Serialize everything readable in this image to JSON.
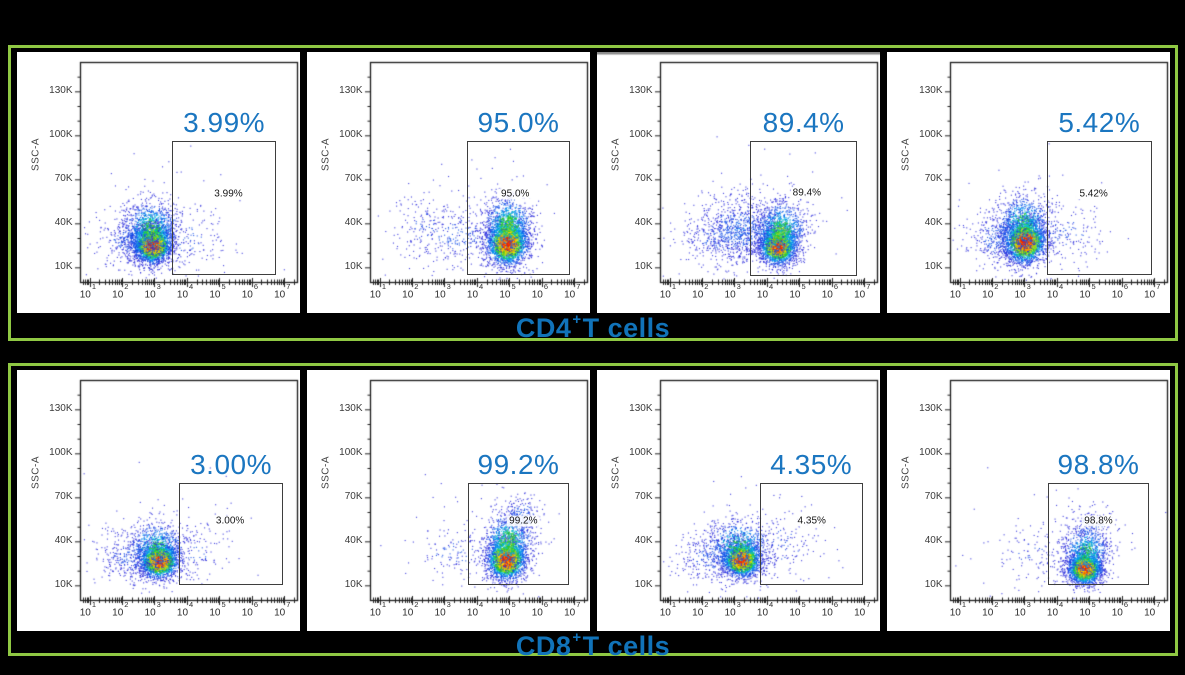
{
  "colors": {
    "page_background": "#000000",
    "frame_green": "#8fc843",
    "panel_background": "#ffffff",
    "percent_blue": "#1b76c0",
    "title_blue": "#1173b9",
    "gate_border": "#3e3e3e",
    "axis_color": "#1a1a1a",
    "tick_label_color": "#3a3a3a",
    "density_palette": [
      "#2b2bdb",
      "#1550e8",
      "#008cf0",
      "#00bfc8",
      "#2ec92e",
      "#a5dc1e",
      "#ffd400",
      "#ff8800",
      "#ed2200"
    ]
  },
  "axes": {
    "y_label": "SSC-A",
    "y_max_k": 150,
    "y_ticks": [
      {
        "v": 10,
        "label": "10K"
      },
      {
        "v": 40,
        "label": "40K"
      },
      {
        "v": 70,
        "label": "70K"
      },
      {
        "v": 100,
        "label": "100K"
      },
      {
        "v": 130,
        "label": "130K"
      }
    ],
    "y_minor_step_k": 10,
    "x_base": "10",
    "x_decades": [
      1,
      2,
      3,
      4,
      5,
      6,
      7
    ],
    "x_log_min": 0.7,
    "x_log_max": 7.4,
    "x_scale": "log10"
  },
  "rows": [
    {
      "label_parts": [
        "CD4",
        "+",
        "T cells"
      ],
      "panels": [
        0,
        1,
        2,
        3
      ]
    },
    {
      "label_parts": [
        "CD8",
        "+",
        "T cells"
      ],
      "panels": [
        4,
        5,
        6,
        7
      ]
    }
  ],
  "chart_data": {
    "type": "scatter",
    "description": "Flow cytometry pseudocolor density dot plots, SSC-A vs log10 fluorescence, with rectangular gates and gated percentages",
    "x_scale": "log10",
    "ylabel": "SSC-A",
    "panels": [
      {
        "group": "CD4+T cells",
        "percent": "3.99%",
        "percent_value": 3.99,
        "gate": {
          "x_log": [
            3.55,
            6.78
          ],
          "y_k": [
            5,
            96
          ]
        },
        "label_pos": {
          "x_log": 5.3,
          "y_k": 60
        },
        "clusters": [
          [
            2.92,
            26,
            0.3,
            6.5,
            2600,
            1.0
          ],
          [
            2.88,
            36,
            0.44,
            10,
            1000,
            0.48
          ],
          [
            2.35,
            28,
            0.6,
            9,
            420,
            0.17
          ],
          [
            3.95,
            30,
            0.75,
            11,
            160,
            0.14
          ],
          [
            3.4,
            42,
            1.2,
            24,
            70,
            0.1
          ]
        ]
      },
      {
        "group": "CD4+T cells",
        "percent": "95.0%",
        "percent_value": 95.0,
        "gate": {
          "x_log": [
            3.72,
            6.88
          ],
          "y_k": [
            5,
            96
          ]
        },
        "label_pos": {
          "x_log": 5.2,
          "y_k": 60
        },
        "clusters": [
          [
            4.93,
            27,
            0.32,
            7.5,
            2400,
            1.0
          ],
          [
            4.95,
            39,
            0.38,
            10,
            950,
            0.5
          ],
          [
            3.4,
            32,
            0.75,
            11,
            280,
            0.15
          ],
          [
            2.35,
            38,
            0.5,
            12,
            110,
            0.13
          ],
          [
            4.2,
            45,
            1.2,
            24,
            70,
            0.1
          ]
        ]
      },
      {
        "group": "CD4+T cells",
        "percent": "89.4%",
        "percent_value": 89.4,
        "gray_top_band": true,
        "gate": {
          "x_log": [
            3.5,
            6.8
          ],
          "y_k": [
            4,
            96
          ]
        },
        "label_pos": {
          "x_log": 5.25,
          "y_k": 61
        },
        "clusters": [
          [
            4.33,
            25,
            0.28,
            6.5,
            2200,
            1.0
          ],
          [
            4.4,
            35,
            0.4,
            10,
            1100,
            0.5
          ],
          [
            3.15,
            36,
            0.6,
            11,
            750,
            0.2
          ],
          [
            2.45,
            30,
            0.6,
            10,
            260,
            0.15
          ],
          [
            3.8,
            45,
            1.2,
            24,
            80,
            0.1
          ]
        ]
      },
      {
        "group": "CD4+T cells",
        "percent": "5.42%",
        "percent_value": 5.42,
        "gate": {
          "x_log": [
            3.7,
            6.95
          ],
          "y_k": [
            5,
            96
          ]
        },
        "label_pos": {
          "x_log": 5.15,
          "y_k": 60
        },
        "clusters": [
          [
            3.0,
            28,
            0.32,
            7.5,
            2500,
            1.0
          ],
          [
            2.95,
            40,
            0.42,
            10,
            850,
            0.46
          ],
          [
            2.3,
            30,
            0.6,
            10,
            430,
            0.17
          ],
          [
            4.2,
            35,
            0.7,
            12,
            160,
            0.14
          ],
          [
            3.5,
            42,
            1.2,
            24,
            70,
            0.1
          ]
        ]
      },
      {
        "group": "CD8+T cells",
        "percent": "3.00%",
        "percent_value": 3.0,
        "gate": {
          "x_log": [
            3.78,
            6.98
          ],
          "y_k": [
            10,
            80
          ]
        },
        "label_pos": {
          "x_log": 5.35,
          "y_k": 54
        },
        "clusters": [
          [
            3.13,
            27,
            0.3,
            6,
            2100,
            1.0
          ],
          [
            3.05,
            36,
            0.45,
            9,
            700,
            0.45
          ],
          [
            2.35,
            30,
            0.6,
            9,
            380,
            0.16
          ],
          [
            4.1,
            33,
            0.6,
            10,
            140,
            0.13
          ],
          [
            3.5,
            40,
            1.2,
            22,
            60,
            0.1
          ]
        ]
      },
      {
        "group": "CD8+T cells",
        "percent": "99.2%",
        "percent_value": 99.2,
        "gate": {
          "x_log": [
            3.75,
            6.85
          ],
          "y_k": [
            10,
            80
          ]
        },
        "label_pos": {
          "x_log": 5.45,
          "y_k": 54
        },
        "clusters": [
          [
            4.9,
            28,
            0.3,
            7,
            2300,
            1.0
          ],
          [
            4.95,
            40,
            0.38,
            10,
            850,
            0.5
          ],
          [
            5.35,
            57,
            0.3,
            7,
            220,
            0.2
          ],
          [
            3.3,
            33,
            0.7,
            10,
            120,
            0.13
          ],
          [
            4.3,
            42,
            1.2,
            22,
            60,
            0.1
          ]
        ]
      },
      {
        "group": "CD8+T cells",
        "percent": "4.35%",
        "percent_value": 4.35,
        "gate": {
          "x_log": [
            3.8,
            6.97
          ],
          "y_k": [
            10,
            80
          ]
        },
        "label_pos": {
          "x_log": 5.4,
          "y_k": 54
        },
        "clusters": [
          [
            3.2,
            28,
            0.3,
            6,
            2200,
            1.0
          ],
          [
            3.1,
            37,
            0.5,
            9,
            700,
            0.45
          ],
          [
            2.35,
            30,
            0.6,
            9,
            380,
            0.16
          ],
          [
            4.5,
            38,
            0.7,
            12,
            150,
            0.13
          ],
          [
            3.6,
            40,
            1.2,
            22,
            60,
            0.1
          ]
        ]
      },
      {
        "group": "CD8+T cells",
        "percent": "98.8%",
        "percent_value": 98.8,
        "gate": {
          "x_log": [
            3.75,
            6.85
          ],
          "y_k": [
            10,
            80
          ]
        },
        "label_pos": {
          "x_log": 5.3,
          "y_k": 54
        },
        "clusters": [
          [
            4.85,
            22,
            0.26,
            5.5,
            2300,
            1.0
          ],
          [
            4.9,
            33,
            0.36,
            9,
            750,
            0.45
          ],
          [
            5.05,
            50,
            0.35,
            8,
            170,
            0.17
          ],
          [
            3.3,
            32,
            0.8,
            10,
            130,
            0.12
          ],
          [
            4.4,
            40,
            1.2,
            22,
            60,
            0.1
          ]
        ]
      }
    ]
  }
}
